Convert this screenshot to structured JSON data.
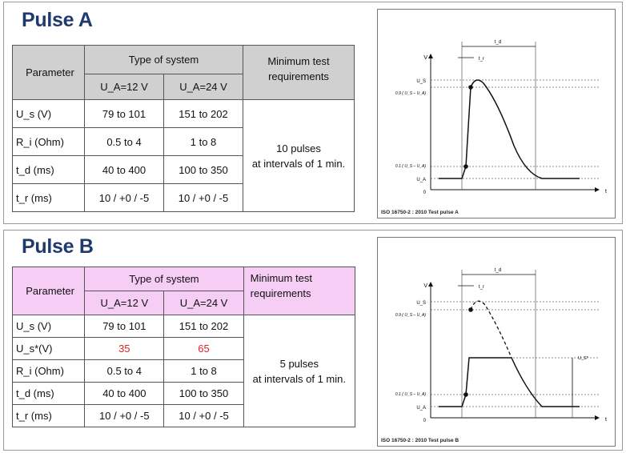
{
  "pulse_a": {
    "title": "Pulse A",
    "header": {
      "parameter": "Parameter",
      "type_of_system": "Type of system",
      "col_12v": "U_A=12 V",
      "col_24v": "U_A=24 V",
      "min_test": "Minimum test requirements"
    },
    "rows": [
      {
        "param": "U_s (V)",
        "v12": "79 to 101",
        "v24": "151 to 202"
      },
      {
        "param": "R_i (Ohm)",
        "v12": "0.5 to 4",
        "v24": "1 to 8"
      },
      {
        "param": "t_d (ms)",
        "v12": "40 to 400",
        "v24": "100 to 350"
      },
      {
        "param": "t_r (ms)",
        "v12": "10 / +0 / -5",
        "v24": "10 / +0 / -5"
      }
    ],
    "requirement_line1": "10 pulses",
    "requirement_line2": "at intervals of 1 min.",
    "figure": {
      "caption": "ISO 16750-2 : 2010 Test pulse A",
      "axis_v": "V",
      "axis_t": "t",
      "label_us": "U_S",
      "label_09": "0.9 ( U_S – U_A)",
      "label_01": "0.1 ( U_S – U_A)",
      "label_ua": "U_A",
      "label_zero": "0",
      "label_td": "t_d",
      "label_tr": "t_r"
    }
  },
  "pulse_b": {
    "title": "Pulse B",
    "header": {
      "parameter": "Parameter",
      "type_of_system": "Type of system",
      "col_12v": "U_A=12 V",
      "col_24v": "U_A=24 V",
      "min_test": "Minimum test requirements"
    },
    "rows": [
      {
        "param": "U_s (V)",
        "v12": "79 to 101",
        "v24": "151 to 202",
        "red": false
      },
      {
        "param": "U_s*(V)",
        "v12": "35",
        "v24": "65",
        "red": true
      },
      {
        "param": "R_i (Ohm)",
        "v12": "0.5 to 4",
        "v24": "1 to 8",
        "red": false
      },
      {
        "param": "t_d (ms)",
        "v12": "40 to 400",
        "v24": "100 to 350",
        "red": false
      },
      {
        "param": "t_r (ms)",
        "v12": "10 / +0 / -5",
        "v24": "10 / +0 / -5",
        "red": false
      }
    ],
    "requirement_line1": "5 pulses",
    "requirement_line2": "at intervals of 1 min.",
    "figure": {
      "caption": "ISO 16750-2 : 2010 Test pulse B",
      "axis_v": "V",
      "axis_t": "t",
      "label_us": "U_S",
      "label_us_star": "U_S*",
      "label_09": "0.9 ( U_S – U_A)",
      "label_01": "0.1 ( U_S – U_A)",
      "label_ua": "U_A",
      "label_zero": "0",
      "label_td": "t_d",
      "label_tr": "t_r"
    }
  }
}
